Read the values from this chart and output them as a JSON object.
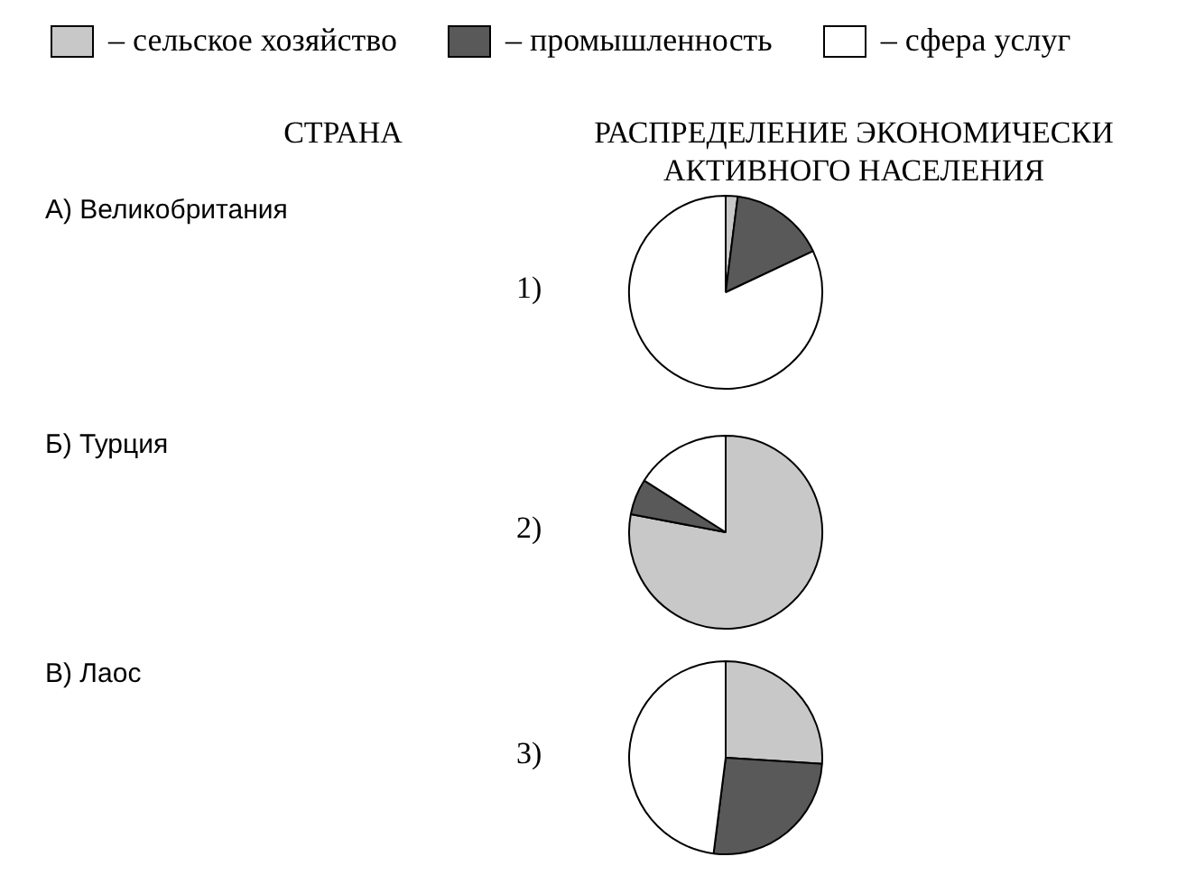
{
  "chart_data": [
    {
      "type": "other",
      "annotations": [
        "СТРАНА",
        "РАСПРЕДЕЛЕНИЕ ЭКОНОМИЧЕСКИ АКТИВНОГО НАСЕЛЕНИЯ",
        "А) Великобритания",
        "Б) Турция",
        "В) Лаос"
      ]
    },
    {
      "type": "pie",
      "title": "1)",
      "legend": "top",
      "categories": [
        "– сельское хозяйство",
        "– промышленность",
        "– сфера услуг"
      ],
      "values": [
        2,
        16,
        82
      ],
      "colors": [
        "#c8c8c8",
        "#595959",
        "#ffffff"
      ]
    },
    {
      "type": "pie",
      "title": "2)",
      "categories": [
        null,
        null,
        null
      ],
      "values": [
        78,
        6,
        16
      ],
      "colors": [
        "#c8c8c8",
        "#595959",
        "#ffffff"
      ]
    },
    {
      "type": "pie",
      "title": "3)",
      "categories": [
        null,
        null,
        null
      ],
      "values": [
        26,
        26,
        48
      ],
      "colors": [
        "#c8c8c8",
        "#595959",
        "#ffffff"
      ]
    }
  ]
}
